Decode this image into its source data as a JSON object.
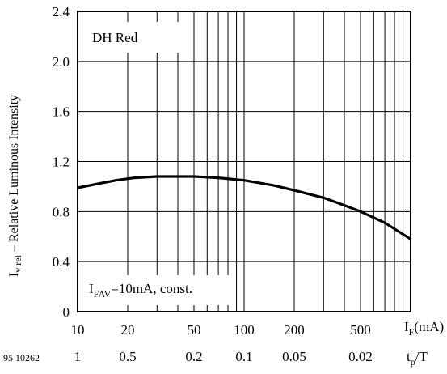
{
  "chart_data": {
    "type": "line",
    "title": "",
    "ylabel_main": "I",
    "ylabel_sub": "v rel",
    "ylabel_rest": " – Relative Luminous Intensity",
    "legend_label": "DH Red",
    "annotation_main": "I",
    "annotation_sub": "FAV",
    "annotation_rest": "=10mA, const.",
    "xlabel_main": "I",
    "xlabel_sub": "F",
    "xlabel_rest": "(mA)",
    "x2label_main": "t",
    "x2label_sub": "p",
    "x2label_rest": "/T",
    "figure_number": "95 10262",
    "x_scale": "log",
    "xlim": [
      10,
      1000
    ],
    "ylim": [
      0,
      2.4
    ],
    "grid": true,
    "yticks": [
      {
        "value": 0,
        "label": "0"
      },
      {
        "value": 0.4,
        "label": "0.4"
      },
      {
        "value": 0.8,
        "label": "0.8"
      },
      {
        "value": 1.2,
        "label": "1.2"
      },
      {
        "value": 1.6,
        "label": "1.6"
      },
      {
        "value": 2.0,
        "label": "2.0"
      },
      {
        "value": 2.4,
        "label": "2.4"
      }
    ],
    "xticks": [
      {
        "value": 10,
        "label": "10"
      },
      {
        "value": 20,
        "label": "20"
      },
      {
        "value": 50,
        "label": "50"
      },
      {
        "value": 100,
        "label": "100"
      },
      {
        "value": 200,
        "label": "200"
      },
      {
        "value": 500,
        "label": "500"
      }
    ],
    "x2ticks": [
      {
        "value": 10,
        "label": "1"
      },
      {
        "value": 20,
        "label": "0.5"
      },
      {
        "value": 50,
        "label": "0.2"
      },
      {
        "value": 100,
        "label": "0.1"
      },
      {
        "value": 200,
        "label": "0.05"
      },
      {
        "value": 500,
        "label": "0.02"
      }
    ],
    "series": [
      {
        "x": [
          10,
          13,
          17,
          22,
          30,
          40,
          50,
          70,
          100,
          150,
          200,
          300,
          400,
          500,
          700,
          1000
        ],
        "y": [
          0.99,
          1.02,
          1.05,
          1.07,
          1.08,
          1.08,
          1.08,
          1.07,
          1.05,
          1.01,
          0.97,
          0.91,
          0.85,
          0.8,
          0.71,
          0.58
        ]
      }
    ]
  }
}
